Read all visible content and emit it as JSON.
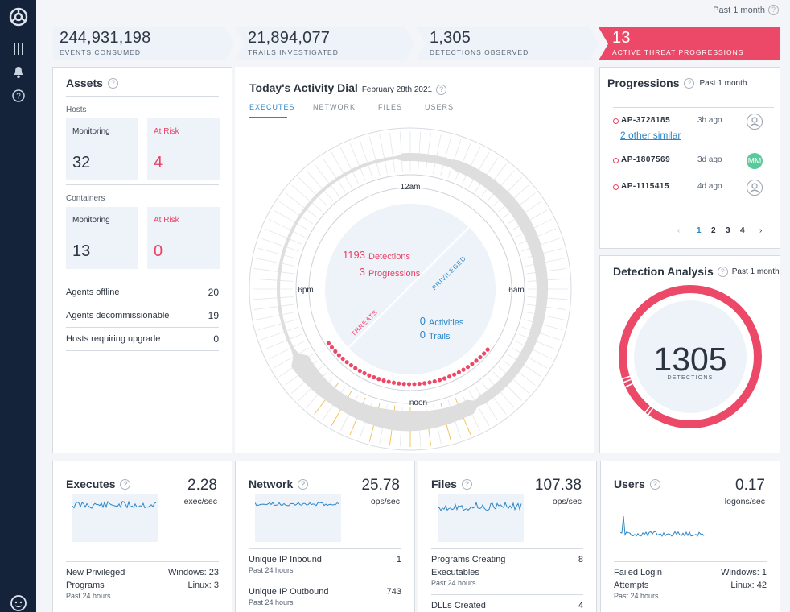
{
  "nav": {
    "icons": [
      "logo-icon",
      "bars-icon",
      "bell-icon",
      "help-icon",
      "user-avatar-icon"
    ]
  },
  "top_period": "Past 1 month",
  "stats": [
    {
      "value": "244,931,198",
      "label": "Events consumed"
    },
    {
      "value": "21,894,077",
      "label": "Trails investigated"
    },
    {
      "value": "1,305",
      "label": "Detections observed"
    },
    {
      "value": "13",
      "label": "Active threat progressions"
    }
  ],
  "colors": {
    "alert": "#ec4868",
    "accent": "#2d86c7",
    "banner": "#eef3fa",
    "nav": "#15233a"
  },
  "assets": {
    "title": "Assets",
    "hosts": {
      "label": "Hosts",
      "monitoring_label": "Monitoring",
      "monitoring": "32",
      "risk_label": "At Risk",
      "risk": "4"
    },
    "containers": {
      "label": "Containers",
      "monitoring_label": "Monitoring",
      "monitoring": "13",
      "risk_label": "At Risk",
      "risk": "0"
    },
    "rows": [
      {
        "label": "Agents offline",
        "value": "20"
      },
      {
        "label": "Agents decommissionable",
        "value": "19"
      },
      {
        "label": "Hosts requiring upgrade",
        "value": "0"
      }
    ]
  },
  "dial": {
    "title": "Today's Activity Dial",
    "date": "February 28th 2021",
    "tabs": [
      "EXECUTES",
      "NETWORK",
      "FILES",
      "USERS"
    ],
    "hours": {
      "top": "12am",
      "right": "6am",
      "bottom": "noon",
      "left": "6pm"
    },
    "detections_value": "1193",
    "detections_label": "Detections",
    "progressions_value": "3",
    "progressions_label": "Progressions",
    "activities_value": "0",
    "activities_label": "Activities",
    "trails_value": "0",
    "trails_label": "Trails",
    "threats_label": "THREATS",
    "privileged_label": "PRIVILEGED"
  },
  "progressions": {
    "title": "Progressions",
    "period": "Past 1 month",
    "items": [
      {
        "id": "AP-3728185",
        "ago": "3h ago",
        "similar": "2 other similar"
      },
      {
        "id": "AP-1807569",
        "ago": "3d ago",
        "avatar": "MM"
      },
      {
        "id": "AP-1115415",
        "ago": "4d ago"
      }
    ],
    "pages": [
      "1",
      "2",
      "3",
      "4"
    ],
    "current_page": 1
  },
  "detection_analysis": {
    "title": "Detection Analysis",
    "period": "Past 1 month",
    "value": "1305",
    "label": "DETECTIONS"
  },
  "cards": [
    {
      "title": "Executes",
      "value": "2.28",
      "unit": "exec/sec",
      "rows": [
        {
          "label": "New Privileged Programs",
          "sub": "Past 24 hours",
          "value": "Windows: 23",
          "value2": "Linux: 3"
        }
      ]
    },
    {
      "title": "Network",
      "value": "25.78",
      "unit": "ops/sec",
      "rows": [
        {
          "label": "Unique IP Inbound",
          "sub": "Past 24 hours",
          "value": "1"
        },
        {
          "label": "Unique IP Outbound",
          "sub": "Past 24 hours",
          "value": "743"
        }
      ]
    },
    {
      "title": "Files",
      "value": "107.38",
      "unit": "ops/sec",
      "rows": [
        {
          "label": "Programs Creating Executables",
          "sub": "Past 24 hours",
          "value": "8"
        },
        {
          "label": "DLLs Created",
          "sub": "",
          "value": "4"
        }
      ]
    },
    {
      "title": "Users",
      "value": "0.17",
      "unit": "logons/sec",
      "rows": [
        {
          "label": "Failed Login Attempts",
          "sub": "Past 24 hours",
          "value": "Windows: 1",
          "value2": "Linux: 42"
        }
      ]
    }
  ]
}
